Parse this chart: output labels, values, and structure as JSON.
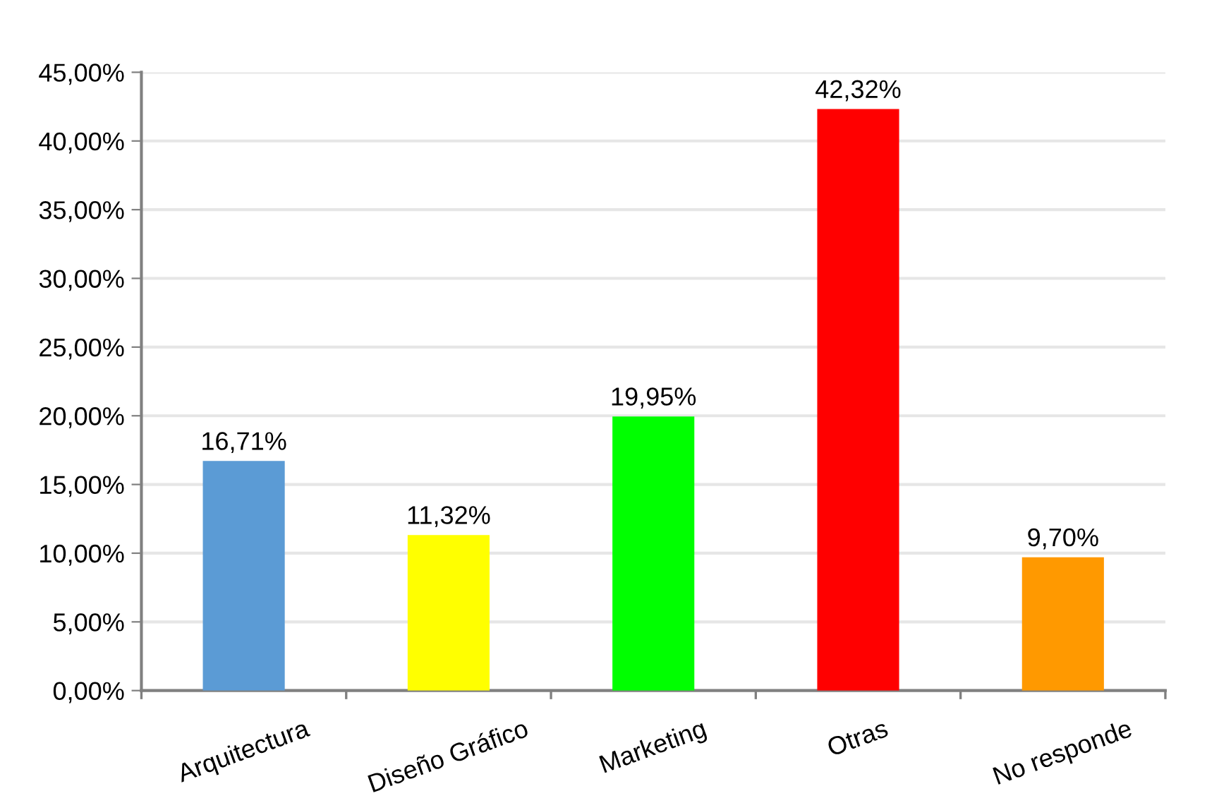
{
  "chart_data": {
    "type": "bar",
    "categories": [
      "Arquitectura",
      "Diseño Gráfico",
      "Marketing",
      "Otras",
      "No responde"
    ],
    "values": [
      16.71,
      11.32,
      19.95,
      42.32,
      9.7
    ],
    "colors": [
      "#5b9bd5",
      "#ffff00",
      "#00ff00",
      "#ff0000",
      "#ff9900"
    ],
    "value_labels": [
      "16,71%",
      "11,32%",
      "19,95%",
      "42,32%",
      "9,70%"
    ],
    "ylim": [
      0,
      45
    ],
    "yticks": [
      {
        "value": 0,
        "label": "0,00%"
      },
      {
        "value": 5,
        "label": "5,00%"
      },
      {
        "value": 10,
        "label": "10,00%"
      },
      {
        "value": 15,
        "label": "15,00%"
      },
      {
        "value": 20,
        "label": "20,00%"
      },
      {
        "value": 25,
        "label": "25,00%"
      },
      {
        "value": 30,
        "label": "30,00%"
      },
      {
        "value": 35,
        "label": "35,00%"
      },
      {
        "value": 40,
        "label": "40,00%"
      },
      {
        "value": 45,
        "label": "45,00%"
      }
    ],
    "grid": "y"
  }
}
